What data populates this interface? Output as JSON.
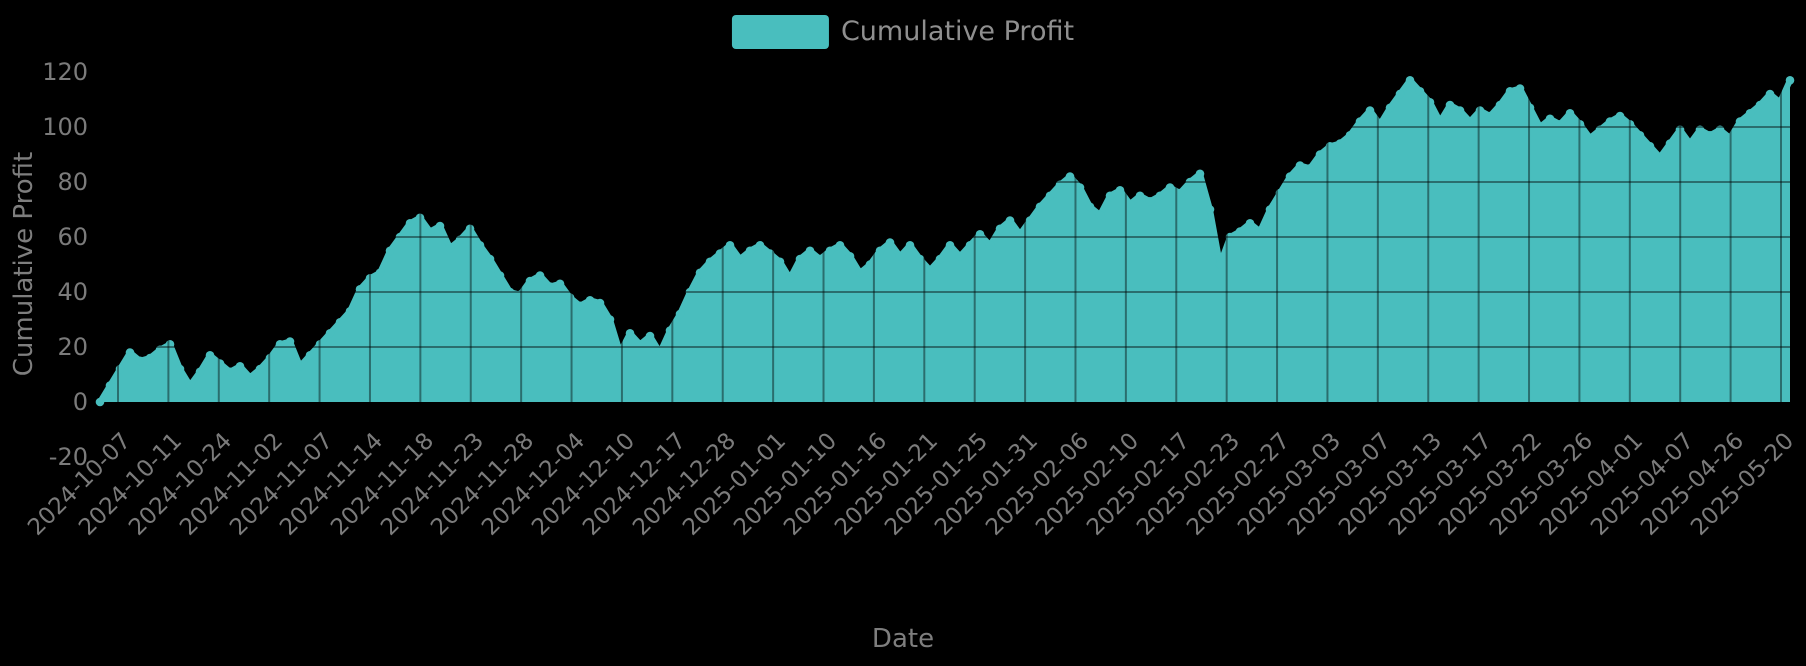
{
  "page": {
    "background": "#000000"
  },
  "legend": {
    "label": "Cumulative Profit",
    "swatch_color": "#49bebe",
    "position": "top-center"
  },
  "chart_data": {
    "type": "area",
    "title": "",
    "xlabel": "Date",
    "ylabel": "Cumulative Profit",
    "series_name": "Cumulative Profit",
    "legend_position": "top-center",
    "grid": true,
    "colors": {
      "area_fill": "#49bebe",
      "line": "#49bebe",
      "marker": "#49bebe",
      "gridline_over_area": "rgba(0,0,0,0.42)",
      "tick_text": "#7b7b7b",
      "axis_title_text": "#7e7e7e",
      "legend_text": "#8f8f8f",
      "background": "#000000"
    },
    "y_ticks": [
      -20,
      0,
      20,
      40,
      60,
      80,
      100,
      120
    ],
    "ylim": [
      -25,
      125
    ],
    "x_tick_labels": [
      "2024-10-07",
      "2024-10-11",
      "2024-10-24",
      "2024-11-02",
      "2024-11-07",
      "2024-11-14",
      "2024-11-18",
      "2024-11-23",
      "2024-11-28",
      "2024-12-04",
      "2024-12-10",
      "2024-12-17",
      "2024-12-28",
      "2025-01-01",
      "2025-01-10",
      "2025-01-16",
      "2025-01-21",
      "2025-01-25",
      "2025-01-31",
      "2025-02-06",
      "2025-02-10",
      "2025-02-17",
      "2025-02-23",
      "2025-02-27",
      "2025-03-03",
      "2025-03-07",
      "2025-03-13",
      "2025-03-17",
      "2025-03-22",
      "2025-03-26",
      "2025-04-01",
      "2025-04-07",
      "2025-04-26",
      "2025-05-20"
    ],
    "values": [
      0,
      6,
      12,
      18,
      15,
      16,
      19,
      21,
      12,
      6,
      11,
      17,
      14,
      11,
      13,
      9,
      12,
      16,
      21,
      22,
      13,
      17,
      21,
      25,
      29,
      33,
      41,
      45,
      47,
      55,
      60,
      65,
      67,
      62,
      64,
      56,
      59,
      63,
      57,
      52,
      46,
      40,
      39,
      44,
      46,
      42,
      43,
      38,
      35,
      37,
      36,
      30,
      18,
      25,
      21,
      24,
      18,
      26,
      32,
      40,
      47,
      51,
      54,
      57,
      52,
      55,
      57,
      54,
      51,
      45,
      52,
      55,
      52,
      55,
      57,
      53,
      47,
      50,
      55,
      58,
      53,
      57,
      52,
      48,
      52,
      57,
      53,
      57,
      61,
      57,
      63,
      66,
      61,
      66,
      71,
      75,
      79,
      82,
      78,
      71,
      68,
      75,
      77,
      72,
      75,
      73,
      75,
      78,
      76,
      80,
      83,
      70,
      50,
      60,
      62,
      65,
      62,
      70,
      76,
      82,
      86,
      85,
      90,
      93,
      94,
      97,
      102,
      106,
      101,
      107,
      112,
      117,
      113,
      109,
      102,
      108,
      106,
      102,
      106,
      104,
      108,
      113,
      114,
      107,
      100,
      103,
      101,
      105,
      101,
      96,
      99,
      102,
      104,
      101,
      97,
      93,
      89,
      94,
      99,
      94,
      99,
      97,
      99,
      96,
      102,
      105,
      108,
      112,
      109,
      117
    ]
  }
}
